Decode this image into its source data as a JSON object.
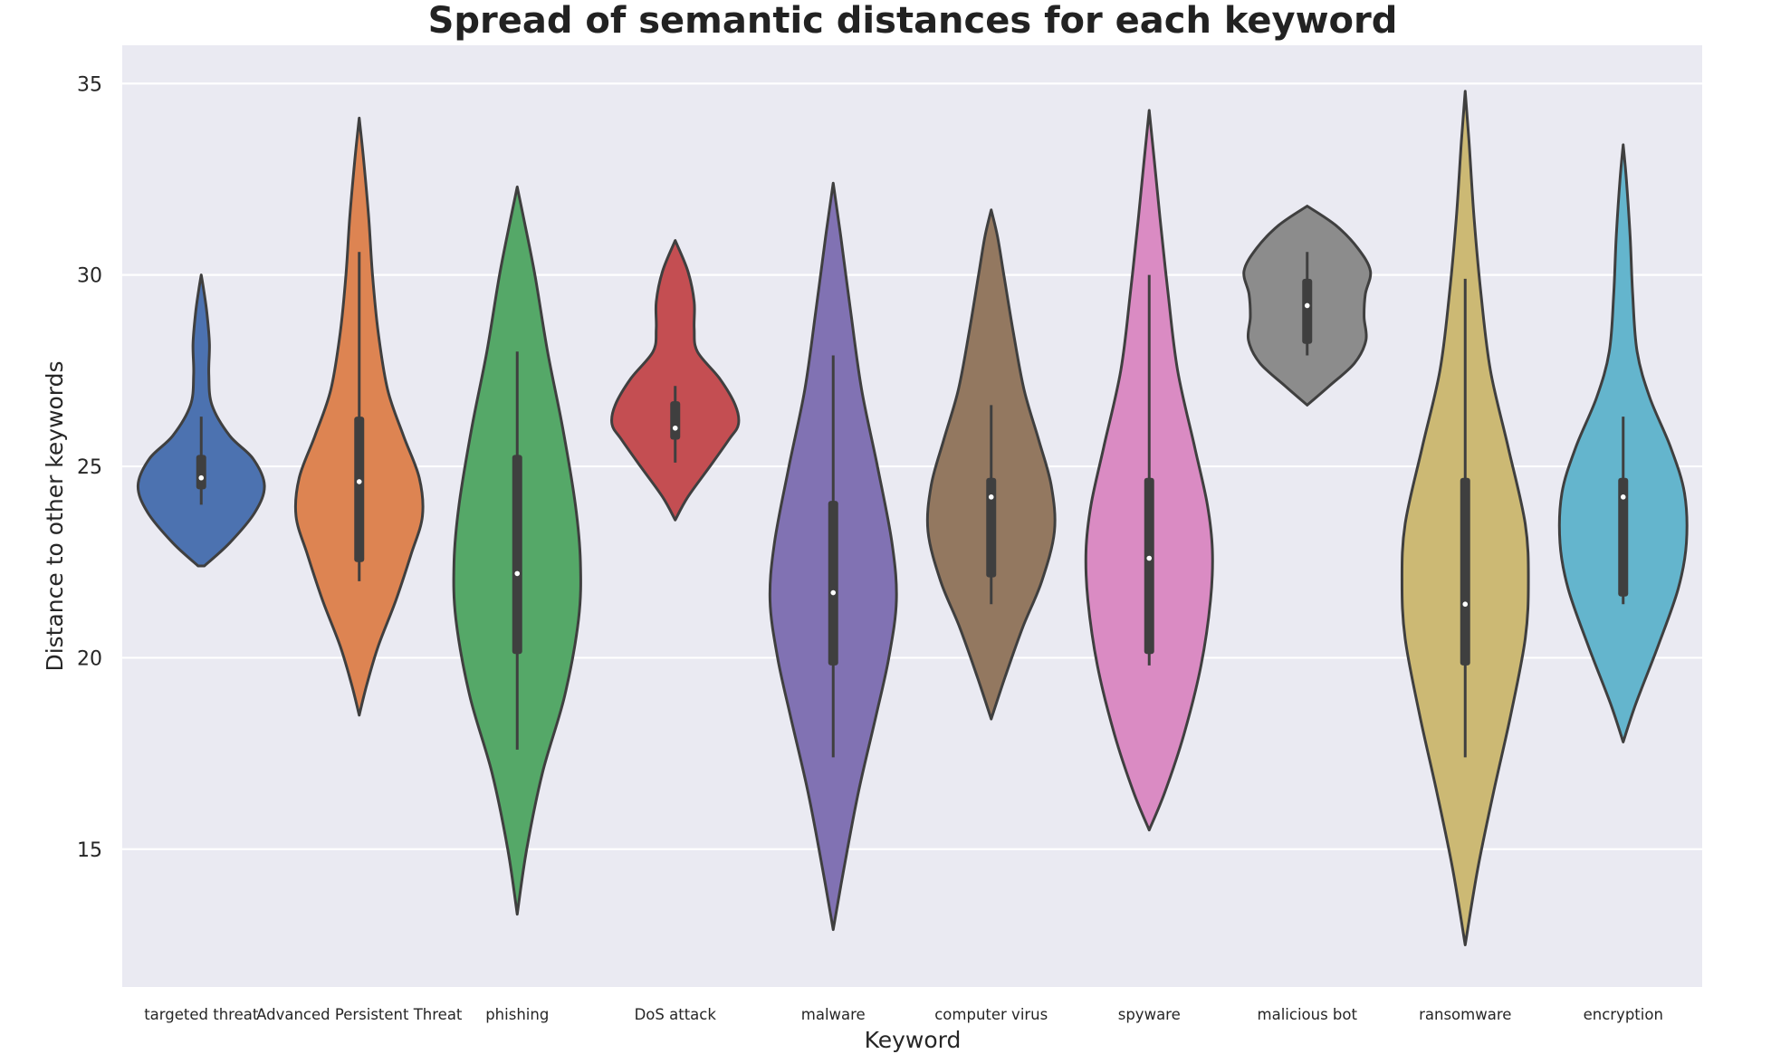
{
  "chart_data": {
    "type": "violin",
    "title": "Spread of semantic distances for each keyword",
    "xlabel": "Keyword",
    "ylabel": "Distance to other keywords",
    "yticks": [
      15,
      20,
      25,
      30,
      35
    ],
    "ylim": [
      11.4,
      36
    ],
    "grid": true,
    "background": "#eaeaf2",
    "categories": [
      "targeted threat",
      "Advanced Persistent Threat",
      "phishing",
      "DoS attack",
      "malware",
      "computer virus",
      "spyware",
      "malicious bot",
      "ransomware",
      "encryption"
    ],
    "series": [
      {
        "color": "#4c72b0",
        "min": 22.4,
        "max": 30.0,
        "q1": 24.4,
        "median": 24.7,
        "q3": 25.3,
        "whisker_low": 24.0,
        "whisker_high": 26.3,
        "density": [
          [
            22.4,
            0.05
          ],
          [
            23.0,
            0.45
          ],
          [
            23.8,
            0.85
          ],
          [
            24.5,
            1.0
          ],
          [
            25.2,
            0.82
          ],
          [
            25.8,
            0.45
          ],
          [
            26.6,
            0.17
          ],
          [
            27.4,
            0.12
          ],
          [
            28.2,
            0.13
          ],
          [
            29.0,
            0.09
          ],
          [
            29.6,
            0.04
          ],
          [
            30.0,
            0.0
          ]
        ]
      },
      {
        "color": "#dd8452",
        "min": 18.5,
        "max": 34.1,
        "q1": 22.5,
        "median": 24.6,
        "q3": 26.3,
        "whisker_low": 22.0,
        "whisker_high": 30.6,
        "density": [
          [
            18.5,
            0.0
          ],
          [
            19.3,
            0.12
          ],
          [
            20.3,
            0.3
          ],
          [
            21.5,
            0.58
          ],
          [
            22.7,
            0.82
          ],
          [
            23.7,
            1.0
          ],
          [
            24.7,
            0.95
          ],
          [
            25.8,
            0.7
          ],
          [
            27.0,
            0.45
          ],
          [
            28.5,
            0.3
          ],
          [
            30.0,
            0.21
          ],
          [
            31.5,
            0.15
          ],
          [
            33.0,
            0.07
          ],
          [
            34.1,
            0.0
          ]
        ]
      },
      {
        "color": "#55a868",
        "min": 13.3,
        "max": 32.3,
        "q1": 20.1,
        "median": 22.2,
        "q3": 25.3,
        "whisker_low": 17.6,
        "whisker_high": 28.0,
        "density": [
          [
            13.3,
            0.0
          ],
          [
            15.0,
            0.15
          ],
          [
            17.0,
            0.4
          ],
          [
            19.0,
            0.75
          ],
          [
            21.0,
            0.97
          ],
          [
            22.5,
            1.0
          ],
          [
            24.0,
            0.92
          ],
          [
            26.0,
            0.72
          ],
          [
            28.0,
            0.48
          ],
          [
            30.0,
            0.28
          ],
          [
            31.5,
            0.1
          ],
          [
            32.3,
            0.0
          ]
        ]
      },
      {
        "color": "#c44e52",
        "min": 23.6,
        "max": 30.9,
        "q1": 25.7,
        "median": 26.0,
        "q3": 26.7,
        "whisker_low": 25.1,
        "whisker_high": 27.1,
        "density": [
          [
            23.6,
            0.0
          ],
          [
            24.2,
            0.2
          ],
          [
            25.0,
            0.55
          ],
          [
            25.7,
            0.85
          ],
          [
            26.1,
            1.0
          ],
          [
            26.6,
            0.95
          ],
          [
            27.3,
            0.7
          ],
          [
            28.0,
            0.35
          ],
          [
            28.6,
            0.3
          ],
          [
            29.3,
            0.3
          ],
          [
            30.1,
            0.2
          ],
          [
            30.9,
            0.0
          ]
        ]
      },
      {
        "color": "#8172b3",
        "min": 12.9,
        "max": 32.4,
        "q1": 19.8,
        "median": 21.7,
        "q3": 24.1,
        "whisker_low": 17.4,
        "whisker_high": 27.9,
        "density": [
          [
            12.9,
            0.0
          ],
          [
            14.5,
            0.17
          ],
          [
            16.5,
            0.4
          ],
          [
            18.5,
            0.68
          ],
          [
            20.0,
            0.88
          ],
          [
            21.5,
            1.0
          ],
          [
            23.0,
            0.93
          ],
          [
            25.0,
            0.7
          ],
          [
            27.0,
            0.45
          ],
          [
            29.0,
            0.28
          ],
          [
            31.0,
            0.12
          ],
          [
            32.4,
            0.0
          ]
        ]
      },
      {
        "color": "#937860",
        "min": 18.4,
        "max": 31.7,
        "q1": 22.1,
        "median": 24.2,
        "q3": 24.7,
        "whisker_low": 21.4,
        "whisker_high": 26.6,
        "density": [
          [
            18.4,
            0.0
          ],
          [
            19.5,
            0.22
          ],
          [
            20.8,
            0.5
          ],
          [
            22.0,
            0.8
          ],
          [
            23.3,
            1.0
          ],
          [
            24.5,
            0.95
          ],
          [
            25.7,
            0.75
          ],
          [
            27.0,
            0.52
          ],
          [
            28.5,
            0.35
          ],
          [
            30.0,
            0.2
          ],
          [
            31.0,
            0.1
          ],
          [
            31.7,
            0.0
          ]
        ]
      },
      {
        "color": "#da8bc3",
        "min": 15.5,
        "max": 34.3,
        "q1": 20.1,
        "median": 22.6,
        "q3": 24.7,
        "whisker_low": 19.8,
        "whisker_high": 30.0,
        "density": [
          [
            15.5,
            0.0
          ],
          [
            16.5,
            0.25
          ],
          [
            18.0,
            0.55
          ],
          [
            19.8,
            0.82
          ],
          [
            21.5,
            0.97
          ],
          [
            22.8,
            1.0
          ],
          [
            24.0,
            0.92
          ],
          [
            25.5,
            0.72
          ],
          [
            27.5,
            0.45
          ],
          [
            29.5,
            0.3
          ],
          [
            31.5,
            0.17
          ],
          [
            33.0,
            0.08
          ],
          [
            34.3,
            0.0
          ]
        ]
      },
      {
        "color": "#8c8c8c",
        "min": 26.6,
        "max": 31.8,
        "q1": 28.2,
        "median": 29.2,
        "q3": 29.9,
        "whisker_low": 27.9,
        "whisker_high": 30.6,
        "density": [
          [
            26.6,
            0.0
          ],
          [
            27.1,
            0.35
          ],
          [
            27.7,
            0.75
          ],
          [
            28.3,
            0.93
          ],
          [
            28.9,
            0.9
          ],
          [
            29.5,
            0.92
          ],
          [
            30.1,
            1.0
          ],
          [
            30.7,
            0.8
          ],
          [
            31.3,
            0.45
          ],
          [
            31.8,
            0.0
          ]
        ]
      },
      {
        "color": "#ccb974",
        "min": 12.5,
        "max": 34.8,
        "q1": 19.8,
        "median": 21.4,
        "q3": 24.7,
        "whisker_low": 17.4,
        "whisker_high": 29.9,
        "density": [
          [
            12.5,
            0.0
          ],
          [
            14.5,
            0.2
          ],
          [
            16.5,
            0.45
          ],
          [
            18.5,
            0.72
          ],
          [
            20.5,
            0.95
          ],
          [
            22.0,
            1.0
          ],
          [
            23.5,
            0.95
          ],
          [
            25.5,
            0.68
          ],
          [
            27.5,
            0.4
          ],
          [
            29.5,
            0.25
          ],
          [
            31.5,
            0.14
          ],
          [
            33.5,
            0.06
          ],
          [
            34.8,
            0.0
          ]
        ]
      },
      {
        "color": "#64b5cd",
        "min": 17.8,
        "max": 33.4,
        "q1": 21.6,
        "median": 24.2,
        "q3": 24.7,
        "whisker_low": 21.4,
        "whisker_high": 26.3,
        "density": [
          [
            17.8,
            0.0
          ],
          [
            18.8,
            0.2
          ],
          [
            20.3,
            0.55
          ],
          [
            21.8,
            0.87
          ],
          [
            23.0,
            1.0
          ],
          [
            24.3,
            0.97
          ],
          [
            25.5,
            0.75
          ],
          [
            26.8,
            0.42
          ],
          [
            28.0,
            0.22
          ],
          [
            29.5,
            0.15
          ],
          [
            31.0,
            0.11
          ],
          [
            32.5,
            0.05
          ],
          [
            33.4,
            0.0
          ]
        ]
      }
    ]
  }
}
